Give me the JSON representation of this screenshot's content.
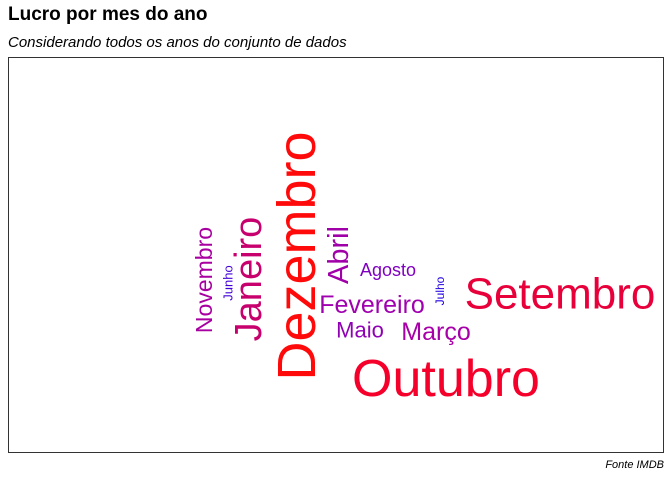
{
  "header": {
    "title": "Lucro por mes do ano",
    "subtitle": "Considerando todos os anos do conjunto de dados"
  },
  "caption": "Fonte IMDB",
  "chart_data": {
    "type": "wordcloud",
    "title": "Lucro por mes do ano",
    "subtitle": "Considerando todos os anos do conjunto de dados",
    "caption": "Fonte IMDB",
    "color_scale": {
      "low": "#0000cc",
      "high": "#ff0000"
    },
    "words": [
      {
        "word": "Dezembro",
        "weight": 100,
        "color": "#ff0a0a"
      },
      {
        "word": "Outubro",
        "weight": 82,
        "color": "#f5002a"
      },
      {
        "word": "Setembro",
        "weight": 72,
        "color": "#e8003a"
      },
      {
        "word": "Janeiro",
        "weight": 60,
        "color": "#c8006e"
      },
      {
        "word": "Abril",
        "weight": 45,
        "color": "#a000a8"
      },
      {
        "word": "Novembro",
        "weight": 38,
        "color": "#a800a0"
      },
      {
        "word": "Fevereiro",
        "weight": 36,
        "color": "#a000b0"
      },
      {
        "word": "Março",
        "weight": 36,
        "color": "#a800a8"
      },
      {
        "word": "Maio",
        "weight": 33,
        "color": "#9000b4"
      },
      {
        "word": "Agosto",
        "weight": 28,
        "color": "#8000c0"
      },
      {
        "word": "Junho",
        "weight": 18,
        "color": "#4000d8"
      },
      {
        "word": "Julho",
        "weight": 17,
        "color": "#2000e0"
      }
    ]
  }
}
